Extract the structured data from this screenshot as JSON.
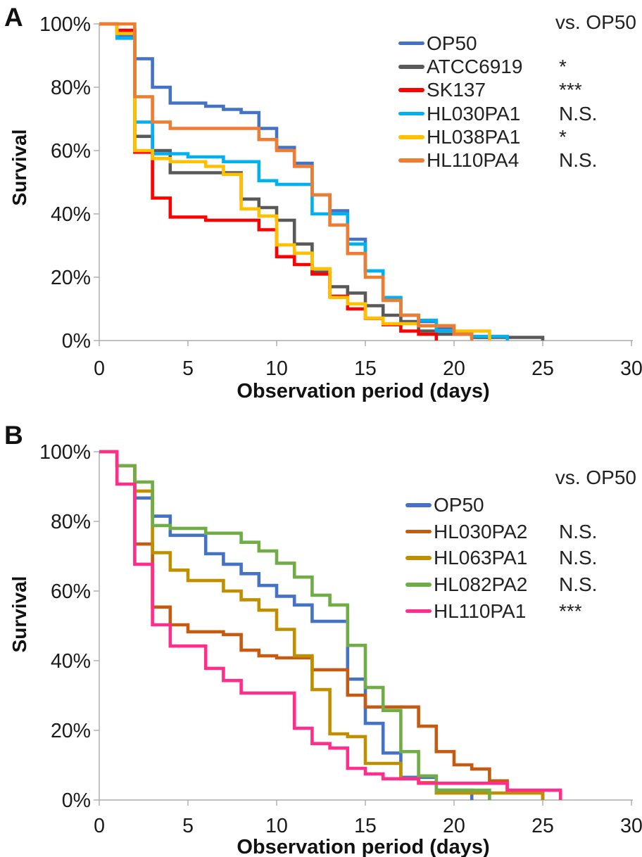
{
  "figure_type": "kaplan-meier-survival-figure",
  "chart_data": [
    {
      "type": "line",
      "subtype": "step-survival",
      "panel": "A",
      "panel_label": "A",
      "ylabel": "Survival",
      "xlabel": "Observation period (days)",
      "legend_header": "vs. OP50",
      "legend_position": "top-right-inside",
      "grid": false,
      "x_range": [
        0,
        30
      ],
      "y_range": [
        0,
        100
      ],
      "x_ticks": [
        0,
        5,
        10,
        15,
        20,
        25,
        30
      ],
      "y_ticks": [
        {
          "value": 0,
          "label": "0%"
        },
        {
          "value": 20,
          "label": "20%"
        },
        {
          "value": 40,
          "label": "40%"
        },
        {
          "value": 60,
          "label": "60%"
        },
        {
          "value": 80,
          "label": "80%"
        },
        {
          "value": 100,
          "label": "100%"
        }
      ],
      "series": [
        {
          "name": "OP50",
          "color": "#4472C4",
          "significance_vs_op50": "",
          "points": [
            [
              1,
              96.5
            ],
            [
              2,
              89
            ],
            [
              3,
              80
            ],
            [
              4,
              75
            ],
            [
              6,
              74
            ],
            [
              7,
              73
            ],
            [
              8,
              72
            ],
            [
              9,
              67
            ],
            [
              10,
              61
            ],
            [
              11,
              56
            ],
            [
              12,
              46
            ],
            [
              13,
              41
            ],
            [
              14,
              32
            ],
            [
              15,
              22
            ],
            [
              16,
              13
            ],
            [
              17,
              8
            ],
            [
              18,
              6
            ],
            [
              19,
              4
            ],
            [
              20,
              2.5
            ],
            [
              21,
              1
            ],
            [
              22,
              0
            ]
          ]
        },
        {
          "name": "ATCC6919",
          "color": "#595959",
          "significance_vs_op50": "*",
          "points": [
            [
              1,
              97.5
            ],
            [
              2,
              64.5
            ],
            [
              3,
              60
            ],
            [
              4,
              53
            ],
            [
              8,
              44.7
            ],
            [
              9,
              42
            ],
            [
              10,
              38
            ],
            [
              11,
              30.5
            ],
            [
              12,
              21.6
            ],
            [
              13,
              17
            ],
            [
              14,
              15
            ],
            [
              15,
              11
            ],
            [
              16,
              8
            ],
            [
              17,
              6
            ],
            [
              18,
              3
            ],
            [
              19,
              2
            ],
            [
              21,
              1
            ],
            [
              25,
              0
            ]
          ]
        },
        {
          "name": "SK137",
          "color": "#FF0000",
          "significance_vs_op50": "***",
          "points": [
            [
              1,
              98
            ],
            [
              2,
              59.5
            ],
            [
              3,
              45
            ],
            [
              4,
              39
            ],
            [
              6,
              38
            ],
            [
              9,
              35
            ],
            [
              10,
              26.5
            ],
            [
              11,
              24
            ],
            [
              12,
              21
            ],
            [
              13,
              14
            ],
            [
              14,
              10
            ],
            [
              15,
              7
            ],
            [
              16,
              5
            ],
            [
              17,
              3
            ],
            [
              18,
              2
            ],
            [
              19,
              0
            ]
          ]
        },
        {
          "name": "HL030PA1",
          "color": "#00B0F0",
          "significance_vs_op50": "N.S.",
          "points": [
            [
              1,
              95.5
            ],
            [
              2,
              69
            ],
            [
              3,
              59
            ],
            [
              5,
              58
            ],
            [
              7,
              56.5
            ],
            [
              9,
              50.5
            ],
            [
              10,
              49.3
            ],
            [
              12,
              40
            ],
            [
              14,
              30.5
            ],
            [
              15,
              22
            ],
            [
              16,
              13.6
            ],
            [
              17,
              8
            ],
            [
              18,
              6.4
            ],
            [
              19,
              3
            ],
            [
              20,
              2
            ],
            [
              21,
              1.3
            ],
            [
              23,
              0
            ]
          ]
        },
        {
          "name": "HL038PA1",
          "color": "#FFC000",
          "significance_vs_op50": "*",
          "points": [
            [
              1,
              97
            ],
            [
              2,
              60
            ],
            [
              3,
              57.5
            ],
            [
              4,
              56.5
            ],
            [
              6,
              55
            ],
            [
              7,
              52.5
            ],
            [
              8,
              41.6
            ],
            [
              9,
              39.3
            ],
            [
              10,
              30.2
            ],
            [
              11,
              27.6
            ],
            [
              12,
              22.7
            ],
            [
              13,
              13.6
            ],
            [
              14,
              11.6
            ],
            [
              15,
              7.1
            ],
            [
              16,
              5.3
            ],
            [
              18,
              4.7
            ],
            [
              20,
              3
            ],
            [
              22,
              0
            ]
          ]
        },
        {
          "name": "HL110PA4",
          "color": "#ED7D31",
          "significance_vs_op50": "N.S.",
          "points": [
            [
              2,
              77
            ],
            [
              3,
              69
            ],
            [
              4,
              67
            ],
            [
              9,
              63.5
            ],
            [
              10,
              60
            ],
            [
              11,
              55
            ],
            [
              12,
              46
            ],
            [
              13,
              36.5
            ],
            [
              14,
              27.5
            ],
            [
              15,
              20
            ],
            [
              16,
              12.7
            ],
            [
              17,
              8
            ],
            [
              18,
              4.7
            ],
            [
              20,
              2
            ],
            [
              21,
              0
            ]
          ]
        }
      ]
    },
    {
      "type": "line",
      "subtype": "step-survival",
      "panel": "B",
      "panel_label": "B",
      "ylabel": "Survival",
      "xlabel": "Observation period (days)",
      "legend_header": "vs. OP50",
      "legend_position": "top-right-inside",
      "grid": false,
      "x_range": [
        0,
        30
      ],
      "y_range": [
        0,
        100
      ],
      "x_ticks": [
        0,
        5,
        10,
        15,
        20,
        25,
        30
      ],
      "y_ticks": [
        {
          "value": 0,
          "label": "0%"
        },
        {
          "value": 20,
          "label": "20%"
        },
        {
          "value": 40,
          "label": "40%"
        },
        {
          "value": 60,
          "label": "60%"
        },
        {
          "value": 80,
          "label": "80%"
        },
        {
          "value": 100,
          "label": "100%"
        }
      ],
      "series": [
        {
          "name": "OP50",
          "color": "#4472C4",
          "significance_vs_op50": "",
          "points": [
            [
              1,
              96
            ],
            [
              2,
              86.7
            ],
            [
              3,
              81.5
            ],
            [
              4,
              76
            ],
            [
              6,
              70.7
            ],
            [
              7,
              67.7
            ],
            [
              8,
              65
            ],
            [
              9,
              61.6
            ],
            [
              10,
              58.5
            ],
            [
              11,
              56
            ],
            [
              12,
              51.3
            ],
            [
              14,
              34.7
            ],
            [
              15,
              22
            ],
            [
              16,
              13.5
            ],
            [
              17,
              6.5
            ],
            [
              19,
              2.8
            ],
            [
              21,
              0
            ]
          ]
        },
        {
          "name": "HL030PA2",
          "color": "#C55A11",
          "significance_vs_op50": "N.S.",
          "points": [
            [
              1,
              96
            ],
            [
              2,
              73.5
            ],
            [
              3,
              55.4
            ],
            [
              4,
              50.3
            ],
            [
              5,
              48.3
            ],
            [
              7,
              47.5
            ],
            [
              8,
              43
            ],
            [
              9,
              41.4
            ],
            [
              10,
              40.8
            ],
            [
              12,
              37.4
            ],
            [
              14,
              30.1
            ],
            [
              15,
              26.7
            ],
            [
              18,
              21.2
            ],
            [
              19,
              13.9
            ],
            [
              20,
              10.1
            ],
            [
              21,
              8.9
            ],
            [
              22,
              5.5
            ],
            [
              23,
              2.5
            ],
            [
              25,
              0
            ]
          ]
        },
        {
          "name": "HL063PA1",
          "color": "#BF8F00",
          "significance_vs_op50": "N.S.",
          "points": [
            [
              1,
              96
            ],
            [
              2,
              88.7
            ],
            [
              3,
              71
            ],
            [
              4,
              66
            ],
            [
              5,
              63
            ],
            [
              7,
              60
            ],
            [
              8,
              57.5
            ],
            [
              9,
              54.5
            ],
            [
              10,
              49
            ],
            [
              11,
              41.4
            ],
            [
              12,
              31.7
            ],
            [
              13,
              19
            ],
            [
              14,
              18.2
            ],
            [
              15,
              10.5
            ],
            [
              17,
              6.1
            ],
            [
              18,
              5
            ],
            [
              19,
              2
            ],
            [
              25,
              0
            ]
          ]
        },
        {
          "name": "HL082PA2",
          "color": "#70AD47",
          "significance_vs_op50": "N.S.",
          "points": [
            [
              1,
              96
            ],
            [
              2,
              91.3
            ],
            [
              3,
              78.8
            ],
            [
              4,
              78
            ],
            [
              6,
              76.6
            ],
            [
              8,
              74
            ],
            [
              9,
              71.5
            ],
            [
              10,
              68
            ],
            [
              11,
              64
            ],
            [
              12,
              58.8
            ],
            [
              13,
              56
            ],
            [
              14,
              44.4
            ],
            [
              15,
              32.3
            ],
            [
              16,
              25.7
            ],
            [
              17,
              13.9
            ],
            [
              18,
              6.9
            ],
            [
              19,
              2.8
            ],
            [
              22,
              0
            ]
          ]
        },
        {
          "name": "HL110PA1",
          "color": "#FF2E8B",
          "significance_vs_op50": "***",
          "points": [
            [
              1,
              90.7
            ],
            [
              2,
              67.7
            ],
            [
              3,
              50.3
            ],
            [
              4,
              44.2
            ],
            [
              6,
              37.8
            ],
            [
              7,
              34.3
            ],
            [
              8,
              30.7
            ],
            [
              11,
              20.6
            ],
            [
              12,
              16.2
            ],
            [
              13,
              14.9
            ],
            [
              14,
              9.1
            ],
            [
              15,
              7.5
            ],
            [
              16,
              6.1
            ],
            [
              18,
              4.8
            ],
            [
              23,
              2.8
            ],
            [
              26,
              0
            ]
          ]
        }
      ]
    }
  ]
}
